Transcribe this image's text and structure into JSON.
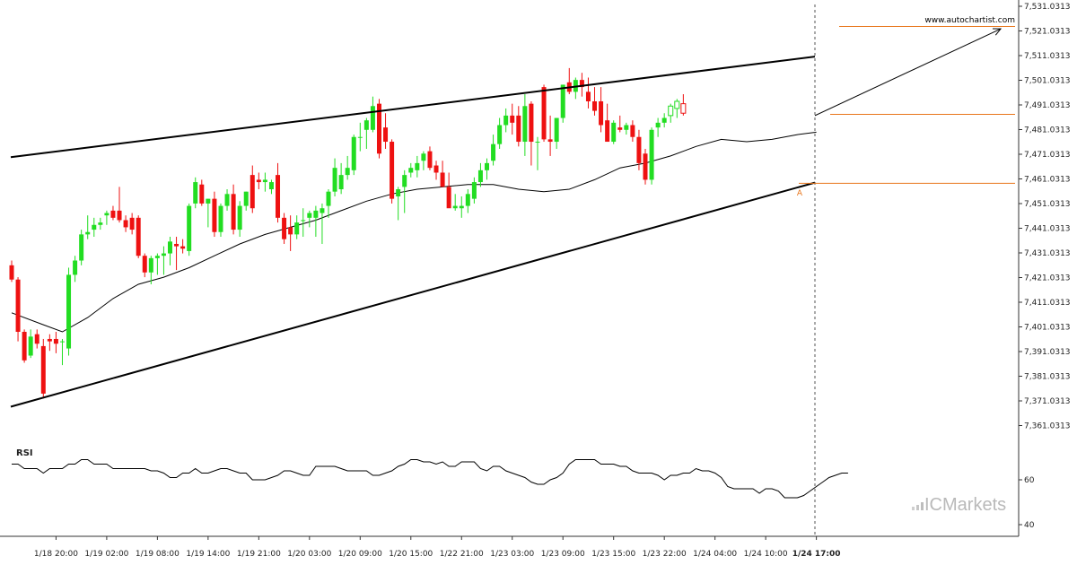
{
  "source_label": "www.autochartist.com",
  "broker_logo_text": "ICMarkets",
  "rsi_label": "RSI",
  "pattern_point_label": "A",
  "colors": {
    "up": "#22dd22",
    "down": "#ee1111",
    "forecast": "#e8751a",
    "trendline": "#000000",
    "ma": "#000000",
    "axis": "#333333"
  },
  "chart_data": [
    {
      "type": "candlestick",
      "title": "",
      "y_ticks": [
        "7,531.0313",
        "7,521.0313",
        "7,511.0313",
        "7,501.0313",
        "7,491.0313",
        "7,481.0313",
        "7,471.0313",
        "7,461.0313",
        "7,451.0313",
        "7,441.0313",
        "7,431.0313",
        "7,421.0313",
        "7,411.0313",
        "7,401.0313",
        "7,391.0313",
        "7,381.0313",
        "7,371.0313",
        "7,361.0313"
      ],
      "ylim": [
        7356.0,
        7533.0
      ],
      "x_ticks": [
        "1/18 20:00",
        "1/19 02:00",
        "1/19 08:00",
        "1/19 14:00",
        "1/19 21:00",
        "1/20 03:00",
        "1/20 09:00",
        "1/20 15:00",
        "1/22 21:00",
        "1/23 03:00",
        "1/23 09:00",
        "1/23 15:00",
        "1/23 22:00",
        "1/24 04:00",
        "1/24 10:00",
        "1/24 17:00"
      ],
      "x_tick_candle_index": [
        7,
        15,
        23,
        31,
        39,
        47,
        55,
        63,
        71,
        79,
        87,
        95,
        103,
        111,
        119,
        127
      ],
      "current_tick": "1/24 17:00",
      "candles": [
        {
          "o": 7424,
          "h": 7426,
          "l": 7417,
          "c": 7418
        },
        {
          "o": 7418,
          "h": 7419,
          "l": 7392,
          "c": 7396
        },
        {
          "o": 7396,
          "h": 7397,
          "l": 7383,
          "c": 7384
        },
        {
          "o": 7386,
          "h": 7397,
          "l": 7385,
          "c": 7394
        },
        {
          "o": 7395,
          "h": 7397,
          "l": 7389,
          "c": 7391
        },
        {
          "o": 7390,
          "h": 7393,
          "l": 7368,
          "c": 7370
        },
        {
          "o": 7393,
          "h": 7395,
          "l": 7388,
          "c": 7392
        },
        {
          "o": 7393,
          "h": 7396,
          "l": 7387,
          "c": 7391
        },
        {
          "o": 7392,
          "h": 7393,
          "l": 7382,
          "c": 7392
        },
        {
          "o": 7389,
          "h": 7423,
          "l": 7386,
          "c": 7420
        },
        {
          "o": 7420,
          "h": 7428,
          "l": 7417,
          "c": 7426
        },
        {
          "o": 7426,
          "h": 7439,
          "l": 7424,
          "c": 7437
        },
        {
          "o": 7437,
          "h": 7445,
          "l": 7435,
          "c": 7438
        },
        {
          "o": 7439,
          "h": 7444,
          "l": 7436,
          "c": 7441
        },
        {
          "o": 7441,
          "h": 7444,
          "l": 7439,
          "c": 7442
        },
        {
          "o": 7445,
          "h": 7447,
          "l": 7441,
          "c": 7446
        },
        {
          "o": 7447,
          "h": 7449,
          "l": 7443,
          "c": 7444
        },
        {
          "o": 7447,
          "h": 7457,
          "l": 7442,
          "c": 7443
        },
        {
          "o": 7443,
          "h": 7445,
          "l": 7438,
          "c": 7440
        },
        {
          "o": 7444,
          "h": 7446,
          "l": 7437,
          "c": 7439
        },
        {
          "o": 7444,
          "h": 7445,
          "l": 7427,
          "c": 7428
        },
        {
          "o": 7428,
          "h": 7429,
          "l": 7419,
          "c": 7421
        },
        {
          "o": 7421,
          "h": 7428,
          "l": 7416,
          "c": 7427
        },
        {
          "o": 7427,
          "h": 7429,
          "l": 7420,
          "c": 7428
        },
        {
          "o": 7428,
          "h": 7432,
          "l": 7420,
          "c": 7429
        },
        {
          "o": 7429,
          "h": 7436,
          "l": 7424,
          "c": 7434
        },
        {
          "o": 7433,
          "h": 7436,
          "l": 7422,
          "c": 7432
        },
        {
          "o": 7432,
          "h": 7435,
          "l": 7429,
          "c": 7431
        },
        {
          "o": 7430,
          "h": 7450,
          "l": 7428,
          "c": 7449
        },
        {
          "o": 7450,
          "h": 7461,
          "l": 7448,
          "c": 7459
        },
        {
          "o": 7458,
          "h": 7460,
          "l": 7449,
          "c": 7450
        },
        {
          "o": 7450,
          "h": 7452,
          "l": 7440,
          "c": 7452
        },
        {
          "o": 7452,
          "h": 7455,
          "l": 7436,
          "c": 7438
        },
        {
          "o": 7438,
          "h": 7450,
          "l": 7436,
          "c": 7449
        },
        {
          "o": 7449,
          "h": 7456,
          "l": 7447,
          "c": 7454
        },
        {
          "o": 7454,
          "h": 7458,
          "l": 7437,
          "c": 7439
        },
        {
          "o": 7439,
          "h": 7451,
          "l": 7436,
          "c": 7449
        },
        {
          "o": 7449,
          "h": 7455,
          "l": 7447,
          "c": 7455
        },
        {
          "o": 7462,
          "h": 7466,
          "l": 7446,
          "c": 7448
        },
        {
          "o": 7460,
          "h": 7463,
          "l": 7456,
          "c": 7459
        },
        {
          "o": 7459,
          "h": 7463,
          "l": 7455,
          "c": 7460
        },
        {
          "o": 7456,
          "h": 7460,
          "l": 7454,
          "c": 7459
        },
        {
          "o": 7462,
          "h": 7467,
          "l": 7442,
          "c": 7444
        },
        {
          "o": 7444,
          "h": 7446,
          "l": 7433,
          "c": 7435
        },
        {
          "o": 7440,
          "h": 7445,
          "l": 7430,
          "c": 7437
        },
        {
          "o": 7437,
          "h": 7445,
          "l": 7435,
          "c": 7442
        },
        {
          "o": 7443,
          "h": 7448,
          "l": 7436,
          "c": 7443
        },
        {
          "o": 7444,
          "h": 7447,
          "l": 7440,
          "c": 7446
        },
        {
          "o": 7444,
          "h": 7449,
          "l": 7436,
          "c": 7447
        },
        {
          "o": 7446,
          "h": 7450,
          "l": 7433,
          "c": 7448
        },
        {
          "o": 7449,
          "h": 7456,
          "l": 7444,
          "c": 7455
        },
        {
          "o": 7455,
          "h": 7469,
          "l": 7453,
          "c": 7465
        },
        {
          "o": 7456,
          "h": 7467,
          "l": 7454,
          "c": 7462
        },
        {
          "o": 7462,
          "h": 7470,
          "l": 7460,
          "c": 7465
        },
        {
          "o": 7464,
          "h": 7479,
          "l": 7462,
          "c": 7478
        },
        {
          "o": 7478,
          "h": 7484,
          "l": 7472,
          "c": 7478
        },
        {
          "o": 7481,
          "h": 7486,
          "l": 7473,
          "c": 7485
        },
        {
          "o": 7481,
          "h": 7495,
          "l": 7480,
          "c": 7491
        },
        {
          "o": 7492,
          "h": 7494,
          "l": 7469,
          "c": 7471
        },
        {
          "o": 7482,
          "h": 7488,
          "l": 7473,
          "c": 7476
        },
        {
          "o": 7476,
          "h": 7477,
          "l": 7450,
          "c": 7452
        },
        {
          "o": 7453,
          "h": 7457,
          "l": 7443,
          "c": 7456
        },
        {
          "o": 7457,
          "h": 7464,
          "l": 7446,
          "c": 7462
        },
        {
          "o": 7463,
          "h": 7467,
          "l": 7461,
          "c": 7465
        },
        {
          "o": 7464,
          "h": 7470,
          "l": 7461,
          "c": 7467
        },
        {
          "o": 7468,
          "h": 7472,
          "l": 7464,
          "c": 7471
        },
        {
          "o": 7472,
          "h": 7474,
          "l": 7464,
          "c": 7465
        },
        {
          "o": 7466,
          "h": 7468,
          "l": 7460,
          "c": 7463
        },
        {
          "o": 7463,
          "h": 7468,
          "l": 7457,
          "c": 7457
        },
        {
          "o": 7457,
          "h": 7463,
          "l": 7449,
          "c": 7448
        },
        {
          "o": 7448,
          "h": 7454,
          "l": 7447,
          "c": 7449
        },
        {
          "o": 7448,
          "h": 7453,
          "l": 7444,
          "c": 7449
        },
        {
          "o": 7449,
          "h": 7456,
          "l": 7446,
          "c": 7454
        },
        {
          "o": 7452,
          "h": 7461,
          "l": 7450,
          "c": 7459
        },
        {
          "o": 7459,
          "h": 7467,
          "l": 7457,
          "c": 7464
        },
        {
          "o": 7464,
          "h": 7469,
          "l": 7460,
          "c": 7467
        },
        {
          "o": 7468,
          "h": 7479,
          "l": 7466,
          "c": 7475
        },
        {
          "o": 7475,
          "h": 7486,
          "l": 7473,
          "c": 7483
        },
        {
          "o": 7483,
          "h": 7490,
          "l": 7480,
          "c": 7487
        },
        {
          "o": 7487,
          "h": 7492,
          "l": 7479,
          "c": 7484
        },
        {
          "o": 7487,
          "h": 7491,
          "l": 7474,
          "c": 7476
        },
        {
          "o": 7476,
          "h": 7496,
          "l": 7470,
          "c": 7491
        },
        {
          "o": 7492,
          "h": 7493,
          "l": 7466,
          "c": 7476
        },
        {
          "o": 7476,
          "h": 7478,
          "l": 7464,
          "c": 7476
        },
        {
          "o": 7499,
          "h": 7500,
          "l": 7476,
          "c": 7477
        },
        {
          "o": 7477,
          "h": 7487,
          "l": 7470,
          "c": 7476
        },
        {
          "o": 7476,
          "h": 7486,
          "l": 7473,
          "c": 7486
        },
        {
          "o": 7486,
          "h": 7500,
          "l": 7484,
          "c": 7500
        },
        {
          "o": 7501,
          "h": 7507,
          "l": 7496,
          "c": 7497
        },
        {
          "o": 7497,
          "h": 7503,
          "l": 7494,
          "c": 7502
        },
        {
          "o": 7502,
          "h": 7505,
          "l": 7495,
          "c": 7499
        },
        {
          "o": 7497,
          "h": 7503,
          "l": 7490,
          "c": 7493
        },
        {
          "o": 7493,
          "h": 7499,
          "l": 7487,
          "c": 7489
        },
        {
          "o": 7493,
          "h": 7499,
          "l": 7480,
          "c": 7483
        },
        {
          "o": 7485,
          "h": 7492,
          "l": 7476,
          "c": 7476
        },
        {
          "o": 7476,
          "h": 7485,
          "l": 7475,
          "c": 7484
        },
        {
          "o": 7482,
          "h": 7487,
          "l": 7480,
          "c": 7481
        },
        {
          "o": 7481,
          "h": 7484,
          "l": 7479,
          "c": 7483
        },
        {
          "o": 7483,
          "h": 7485,
          "l": 7476,
          "c": 7478
        },
        {
          "o": 7478,
          "h": 7481,
          "l": 7464,
          "c": 7467
        },
        {
          "o": 7471,
          "h": 7473,
          "l": 7458,
          "c": 7460
        },
        {
          "o": 7460,
          "h": 7482,
          "l": 7458,
          "c": 7481
        },
        {
          "o": 7482,
          "h": 7486,
          "l": 7478,
          "c": 7484
        },
        {
          "o": 7484,
          "h": 7488,
          "l": 7482,
          "c": 7486
        },
        {
          "o": 7487,
          "h": 7492,
          "l": 7484,
          "c": 7491
        },
        {
          "o": 7490,
          "h": 7494,
          "l": 7486,
          "c": 7493
        },
        {
          "o": 7492,
          "h": 7496,
          "l": 7487,
          "c": 7488
        }
      ],
      "forecast_candles_from_index": 104,
      "ma": [
        [
          0,
          7404
        ],
        [
          5,
          7399
        ],
        [
          8,
          7396
        ],
        [
          12,
          7402
        ],
        [
          16,
          7410
        ],
        [
          20,
          7416
        ],
        [
          24,
          7419
        ],
        [
          28,
          7423
        ],
        [
          32,
          7428
        ],
        [
          36,
          7433
        ],
        [
          40,
          7437
        ],
        [
          44,
          7440
        ],
        [
          48,
          7443
        ],
        [
          52,
          7447
        ],
        [
          56,
          7451
        ],
        [
          60,
          7454
        ],
        [
          64,
          7456
        ],
        [
          68,
          7457
        ],
        [
          72,
          7458
        ],
        [
          76,
          7458
        ],
        [
          80,
          7456
        ],
        [
          84,
          7455
        ],
        [
          88,
          7456
        ],
        [
          92,
          7460
        ],
        [
          96,
          7465
        ],
        [
          100,
          7467
        ],
        [
          104,
          7470
        ],
        [
          108,
          7474
        ],
        [
          112,
          7477
        ],
        [
          116,
          7476
        ],
        [
          120,
          7477
        ],
        [
          124,
          7479
        ],
        [
          127,
          7480
        ]
      ],
      "channel_upper": [
        [
          7469.5,
          7511.8
        ]
      ],
      "channel_lower": [
        [
          7364.5,
          7458.8
        ]
      ],
      "forecast_target": 7524.5,
      "forecast_stop": 7458.5,
      "forecast_entry": 7487.5,
      "pattern_point_price": 7458.0,
      "arrow_start_price": 7487.0,
      "arrow_end_price": 7523.5
    },
    {
      "type": "line",
      "title": "RSI",
      "y_ticks": [
        "60",
        "40"
      ],
      "ylim": [
        38,
        72
      ],
      "values": [
        67,
        67,
        65,
        65,
        65,
        63,
        65,
        65,
        65,
        67,
        67,
        69,
        69,
        67,
        67,
        67,
        65,
        65,
        65,
        65,
        65,
        65,
        64,
        64,
        63,
        61,
        61,
        63,
        63,
        65,
        63,
        63,
        64,
        65,
        65,
        64,
        63,
        63,
        60,
        60,
        60,
        61,
        62,
        64,
        64,
        63,
        62,
        62,
        66,
        66,
        66,
        66,
        65,
        64,
        64,
        64,
        64,
        62,
        62,
        63,
        64,
        66,
        67,
        69,
        69,
        68,
        68,
        67,
        68,
        66,
        66,
        68,
        68,
        68,
        65,
        64,
        66,
        66,
        64,
        63,
        62,
        61,
        59,
        58,
        58,
        60,
        61,
        63,
        67,
        69,
        69,
        69,
        69,
        67,
        67,
        67,
        66,
        66,
        64,
        63,
        63,
        63,
        62,
        60,
        62,
        62,
        63,
        63,
        65,
        64,
        64,
        63,
        61,
        57,
        56,
        56,
        56,
        56,
        54,
        56,
        56,
        55,
        52,
        52,
        52,
        53,
        55,
        57,
        59,
        61,
        62,
        63,
        63
      ]
    }
  ]
}
